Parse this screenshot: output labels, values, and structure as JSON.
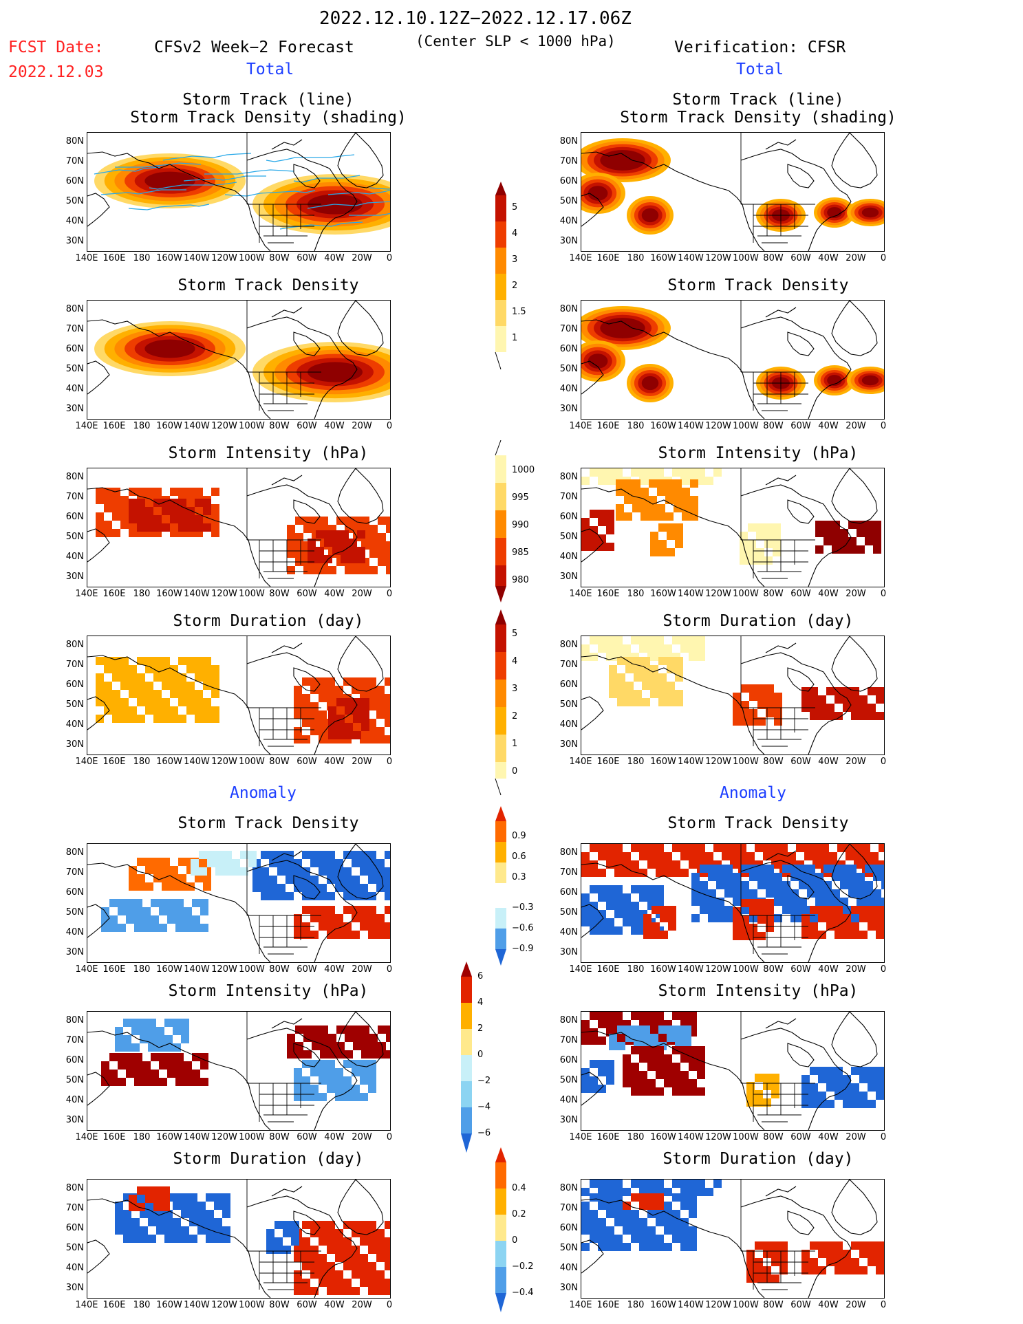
{
  "header": {
    "period": "2022.12.10.12Z−2022.12.17.06Z",
    "fcst_label": "FCST Date:",
    "fcst_date": "2022.12.03",
    "model_label": "CFSv2 Week−2 Forecast",
    "criterion": "(Center SLP < 1000 hPa)",
    "verification_label": "Verification: CFSR",
    "total_left": "Total",
    "total_right": "Total",
    "anomaly_left": "Anomaly",
    "anomaly_right": "Anomaly"
  },
  "panel_titles": {
    "track_line": "Storm Track (line)",
    "track_shading": "Storm Track Density (shading)",
    "density": "Storm Track Density",
    "intensity": "Storm Intensity (hPa)",
    "duration": "Storm Duration (day)"
  },
  "axes": {
    "lat_labels": [
      "80N",
      "70N",
      "60N",
      "50N",
      "40N",
      "30N"
    ],
    "lon_labels": [
      "140E",
      "160E",
      "180",
      "160W",
      "140W",
      "120W",
      "100W",
      "80W",
      "60W",
      "40W",
      "20W",
      "0"
    ]
  },
  "colorbars": {
    "density_total": [
      "5",
      "4",
      "3",
      "2",
      "1.5",
      "1"
    ],
    "intensity_total": [
      "1000",
      "995",
      "990",
      "985",
      "980"
    ],
    "duration_total": [
      "5",
      "4",
      "3",
      "2",
      "1",
      "0"
    ],
    "density_anom": [
      "0.9",
      "0.6",
      "0.3",
      "−0.3",
      "−0.6",
      "−0.9"
    ],
    "intensity_anom": [
      "6",
      "4",
      "2",
      "0",
      "−2",
      "−4",
      "−6"
    ],
    "duration_anom": [
      "0.4",
      "0.2",
      "0",
      "−0.2",
      "−0.4"
    ]
  },
  "colors": {
    "total_scale": [
      "#fff6b0",
      "#ffd966",
      "#ffb000",
      "#ff8a00",
      "#ee3d00",
      "#c41200",
      "#8f0000"
    ],
    "anom_positive": [
      "#ffe98c",
      "#ffb000",
      "#ff6a00",
      "#e22400",
      "#9f0000"
    ],
    "anom_negative": [
      "#c8f0f8",
      "#8cd4f2",
      "#4f9ee8",
      "#1f66d6"
    ],
    "track_lines": "#27a8e8"
  }
}
